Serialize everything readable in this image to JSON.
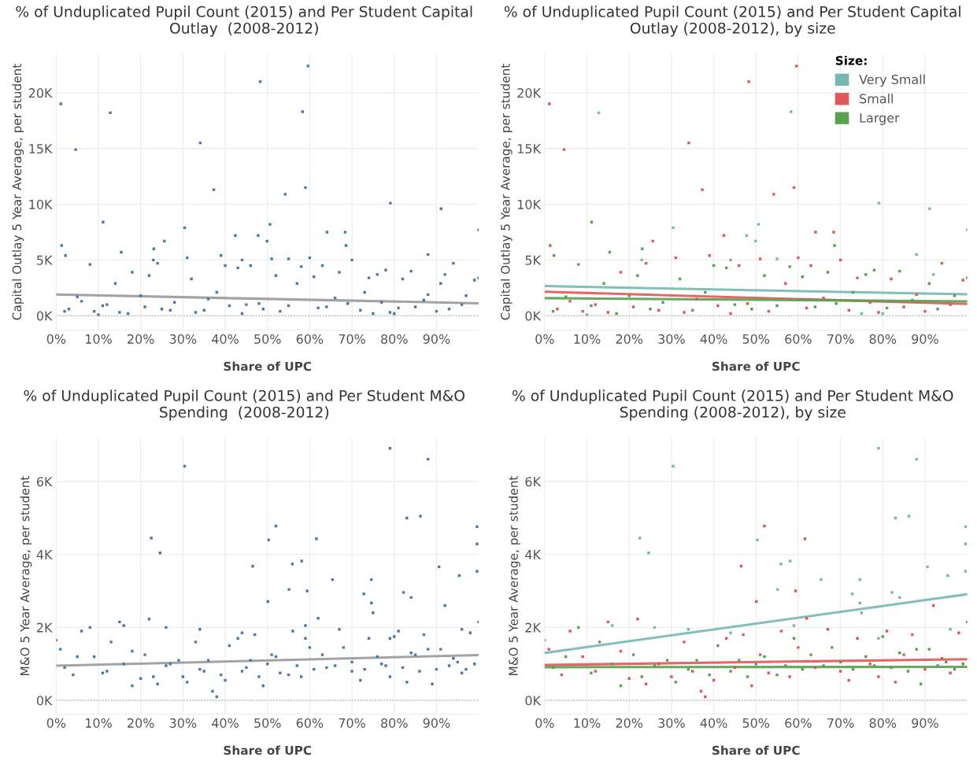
{
  "chart_data": [
    {
      "type": "scatter",
      "title": "% of Unduplicated Pupil Count (2015) and Per Student Capital Outlay  (2008-2012)",
      "xlabel": "Share of UPC",
      "ylabel": "Capital Outlay 5 Year Average, per student",
      "xlim": [
        0,
        100
      ],
      "ylim": [
        -1300,
        23500
      ],
      "xticks": [
        {
          "value": 0,
          "label": "0%"
        },
        {
          "value": 10,
          "label": "10%"
        },
        {
          "value": 20,
          "label": "20%"
        },
        {
          "value": 30,
          "label": "30%"
        },
        {
          "value": 40,
          "label": "40%"
        },
        {
          "value": 50,
          "label": "50%"
        },
        {
          "value": 60,
          "label": "60%"
        },
        {
          "value": 70,
          "label": "70%"
        },
        {
          "value": 80,
          "label": "80%"
        },
        {
          "value": 90,
          "label": "90%"
        }
      ],
      "yticks": [
        {
          "value": 0,
          "label": "0K"
        },
        {
          "value": 5000,
          "label": "5K"
        },
        {
          "value": 10000,
          "label": "10K"
        },
        {
          "value": 15000,
          "label": "15K"
        },
        {
          "value": 20000,
          "label": "20K"
        }
      ],
      "grid": true,
      "marker": "square",
      "ref_lines": [
        {
          "axis": "y",
          "value": 0,
          "line_style": "dotted",
          "color": "#bbbbbb"
        }
      ],
      "series": [
        {
          "color": "#4e79a7",
          "x": [
            12.8,
            58.3,
            79.1,
            91.1,
            30.4,
            50.6,
            47.8,
            100,
            49.9,
            10,
            23,
            44,
            55,
            75,
            88,
            92,
            80,
            1.1,
            4.6,
            34.1,
            48.3,
            59.6,
            59.0,
            54.2,
            37.3,
            1.3,
            25.6,
            42.4,
            64.1,
            68.4,
            3,
            6,
            9,
            12,
            15,
            18,
            21,
            24,
            27,
            31,
            33,
            36,
            39,
            41,
            44,
            46,
            48,
            51,
            53,
            57,
            60,
            62,
            63,
            66,
            70,
            72,
            74,
            77,
            79,
            82,
            85,
            88,
            90,
            94,
            96,
            99,
            11.1,
            2.2,
            68.6,
            23.1,
            15.4,
            2,
            5,
            8,
            11,
            14,
            17,
            20,
            22,
            25,
            28,
            32,
            35,
            38,
            40,
            43,
            45,
            49,
            52,
            55,
            58,
            61,
            64,
            67,
            69,
            73,
            76,
            78,
            81,
            84,
            87,
            91,
            93,
            97,
            100
          ],
          "values": [
            18200,
            18300,
            10100,
            9600,
            7900,
            8200,
            7200,
            7700,
            6700,
            100,
            5000,
            5000,
            5100,
            200,
            5500,
            3700,
            200,
            19000,
            14900,
            15500,
            21000,
            22400,
            11500,
            10900,
            11300,
            6300,
            6700,
            7200,
            7500,
            7500,
            600,
            1300,
            400,
            1000,
            300,
            3900,
            800,
            4700,
            500,
            5200,
            300,
            1500,
            5400,
            900,
            200,
            4500,
            1100,
            5100,
            400,
            2900,
            5200,
            700,
            4500,
            1600,
            5000,
            500,
            3400,
            1200,
            300,
            3300,
            800,
            1900,
            400,
            4700,
            1000,
            3200,
            8400,
            5400,
            6300,
            6000,
            5700,
            400,
            1700,
            4600,
            900,
            2900,
            200,
            1800,
            3600,
            600,
            1200,
            3300,
            500,
            2100,
            4500,
            4300,
            1000,
            600,
            3600,
            900,
            4400,
            3500,
            800,
            3900,
            1100,
            2100,
            3700,
            4100,
            700,
            4000,
            1400,
            2900,
            600,
            1800,
            3400
          ]
        },
        {
          "type": "line",
          "color": "#999999",
          "marker": "none",
          "x": [
            0,
            100
          ],
          "values": [
            1900,
            1120
          ]
        }
      ]
    },
    {
      "type": "scatter",
      "title": "% of Unduplicated Pupil Count (2015) and Per Student Capital Outlay (2008-2012), by size",
      "xlabel": "Share of UPC",
      "ylabel": "Capital Outlay 5 Year Average, per student",
      "xlim": [
        0,
        100
      ],
      "ylim": [
        -1300,
        23500
      ],
      "xticks": [
        {
          "value": 0,
          "label": "0%"
        },
        {
          "value": 10,
          "label": "10%"
        },
        {
          "value": 20,
          "label": "20%"
        },
        {
          "value": 30,
          "label": "30%"
        },
        {
          "value": 40,
          "label": "40%"
        },
        {
          "value": 50,
          "label": "50%"
        },
        {
          "value": 60,
          "label": "60%"
        },
        {
          "value": 70,
          "label": "70%"
        },
        {
          "value": 80,
          "label": "80%"
        },
        {
          "value": 90,
          "label": "90%"
        }
      ],
      "yticks": [
        {
          "value": 0,
          "label": "0K"
        },
        {
          "value": 5000,
          "label": "5K"
        },
        {
          "value": 10000,
          "label": "10K"
        },
        {
          "value": 15000,
          "label": "15K"
        },
        {
          "value": 20000,
          "label": "20K"
        }
      ],
      "grid": true,
      "marker": "square",
      "legend": "top right",
      "legend_title": "Size:",
      "ref_lines": [
        {
          "axis": "y",
          "value": 0,
          "line_style": "dotted",
          "color": "#bbbbbb"
        }
      ],
      "series": [
        {
          "name": "Very Small",
          "color": "#76b7b2",
          "x": [
            12.8,
            58.3,
            79.1,
            91.1,
            30.4,
            50.6,
            47.8,
            100,
            49.9,
            10,
            23,
            44,
            55,
            75,
            88,
            92,
            80
          ],
          "values": [
            18200,
            18300,
            10100,
            9600,
            7900,
            8200,
            7200,
            7700,
            6700,
            100,
            5000,
            5000,
            5100,
            200,
            5500,
            3700,
            200
          ]
        },
        {
          "name": "Small",
          "color": "#e15759",
          "x": [
            1.1,
            4.6,
            34.1,
            48.3,
            59.6,
            59.0,
            54.2,
            37.3,
            1.3,
            25.6,
            42.4,
            64.1,
            68.4,
            3,
            6,
            9,
            12,
            15,
            18,
            21,
            24,
            27,
            31,
            33,
            36,
            39,
            41,
            44,
            46,
            48,
            51,
            53,
            57,
            60,
            62,
            63,
            66,
            70,
            72,
            74,
            77,
            79,
            82,
            85,
            88,
            90,
            94,
            96,
            99
          ],
          "values": [
            19000,
            14900,
            15500,
            21000,
            22400,
            11500,
            10900,
            11300,
            6300,
            6700,
            7200,
            7500,
            7500,
            600,
            1300,
            400,
            1000,
            300,
            3900,
            800,
            4700,
            500,
            5200,
            300,
            1500,
            5400,
            900,
            200,
            4500,
            1100,
            5100,
            400,
            2900,
            5200,
            700,
            4500,
            1600,
            5000,
            500,
            3400,
            1200,
            300,
            3300,
            800,
            1900,
            400,
            4700,
            1000,
            3200
          ]
        },
        {
          "name": "Larger",
          "color": "#59a14f",
          "x": [
            11.1,
            2.2,
            68.6,
            23.1,
            15.4,
            2,
            5,
            8,
            11,
            14,
            17,
            20,
            22,
            25,
            28,
            32,
            35,
            38,
            40,
            43,
            45,
            49,
            52,
            55,
            58,
            61,
            64,
            67,
            69,
            73,
            76,
            78,
            81,
            84,
            87,
            91,
            93,
            97,
            100
          ],
          "values": [
            8400,
            5400,
            6300,
            6000,
            5700,
            400,
            1700,
            4600,
            900,
            2900,
            200,
            1800,
            3600,
            600,
            1200,
            3300,
            500,
            2100,
            4500,
            4300,
            1000,
            600,
            3600,
            900,
            4400,
            3500,
            800,
            3900,
            1100,
            2100,
            3700,
            4100,
            700,
            4000,
            1400,
            2900,
            600,
            1800,
            3400
          ]
        },
        {
          "type": "line",
          "color": "#76b7b2",
          "marker": "none",
          "x": [
            0,
            100
          ],
          "values": [
            2660,
            1920
          ]
        },
        {
          "type": "line",
          "color": "#e15759",
          "marker": "none",
          "x": [
            0,
            100
          ],
          "values": [
            2150,
            1060
          ]
        },
        {
          "type": "line",
          "color": "#59a14f",
          "marker": "none",
          "x": [
            0,
            100
          ],
          "values": [
            1580,
            1290
          ]
        }
      ]
    },
    {
      "type": "scatter",
      "title": "% of Unduplicated Pupil Count (2015) and Per Student M&O Spending  (2008-2012)",
      "xlabel": "Share of UPC",
      "ylabel": "M&O 5 Year Average, per student",
      "xlim": [
        0,
        100
      ],
      "ylim": [
        -380,
        7200
      ],
      "xticks": [
        {
          "value": 0,
          "label": "0%"
        },
        {
          "value": 10,
          "label": "10%"
        },
        {
          "value": 20,
          "label": "20%"
        },
        {
          "value": 30,
          "label": "30%"
        },
        {
          "value": 40,
          "label": "40%"
        },
        {
          "value": 50,
          "label": "50%"
        },
        {
          "value": 60,
          "label": "60%"
        },
        {
          "value": 70,
          "label": "70%"
        },
        {
          "value": 80,
          "label": "80%"
        },
        {
          "value": 90,
          "label": "90%"
        }
      ],
      "yticks": [
        {
          "value": 0,
          "label": "0K"
        },
        {
          "value": 2000,
          "label": "2K"
        },
        {
          "value": 4000,
          "label": "4K"
        },
        {
          "value": 6000,
          "label": "6K"
        }
      ],
      "grid": true,
      "marker": "square",
      "ref_lines": [
        {
          "axis": "y",
          "value": 0,
          "line_style": "dotted",
          "color": "#bbbbbb"
        }
      ],
      "series": [
        {
          "color": "#4e79a7",
          "x": [
            30.4,
            79.0,
            88.0,
            83.0,
            86.2,
            50.3,
            22.5,
            24.6,
            99.6,
            99.6,
            55.9,
            58.1,
            90.6,
            99.6,
            95.4,
            65.4,
            74.6,
            55.1,
            72.8,
            82.2,
            74.6,
            0,
            16,
            26,
            34,
            44,
            59,
            75,
            79,
            84,
            96,
            52.0,
            61.6,
            46.5,
            59.4,
            50.1,
            1,
            4,
            6,
            9,
            12,
            15,
            18,
            20,
            22,
            24,
            27,
            30,
            33,
            35,
            37,
            38,
            40,
            43,
            45,
            47,
            49,
            51,
            53,
            56,
            58,
            60,
            62,
            64,
            67,
            70,
            72,
            74,
            77,
            79,
            81,
            83,
            85,
            87,
            90,
            92,
            94,
            96,
            98,
            100,
            2,
            5,
            8,
            11,
            13,
            16,
            18,
            21,
            23,
            26,
            29,
            31,
            34,
            36,
            39,
            41,
            44,
            46,
            48,
            50,
            52,
            55,
            57,
            59,
            61,
            63,
            66,
            68,
            70,
            73,
            76,
            78,
            80,
            82,
            84,
            86,
            88,
            89,
            91,
            93,
            95,
            97,
            99
          ],
          "values": [
            6420,
            6910,
            6610,
            5000,
            5050,
            4400,
            4450,
            4040,
            4760,
            4290,
            3740,
            3820,
            3660,
            3540,
            3420,
            3310,
            3310,
            3040,
            2920,
            2960,
            2670,
            1650,
            2050,
            2000,
            1950,
            1850,
            2050,
            2400,
            1700,
            2820,
            1950,
            4780,
            4430,
            3680,
            3000,
            2710,
            1400,
            700,
            1900,
            1200,
            800,
            2150,
            1350,
            600,
            2230,
            450,
            1000,
            650,
            1600,
            800,
            250,
            100,
            550,
            1700,
            900,
            1800,
            400,
            1250,
            750,
            1900,
            650,
            1450,
            2250,
            900,
            1950,
            800,
            550,
            1700,
            1000,
            650,
            1900,
            500,
            1250,
            1800,
            850,
            2600,
            1150,
            750,
            1850,
            2150,
            900,
            1200,
            2000,
            750,
            1600,
            1000,
            400,
            1250,
            650,
            950,
            1100,
            500,
            850,
            1100,
            700,
            1500,
            800,
            1100,
            650,
            1000,
            1200,
            700,
            950,
            1700,
            850,
            1250,
            950,
            1450,
            1050,
            850,
            1200,
            950,
            1750,
            900,
            1300,
            800,
            1400,
            450,
            1400,
            950,
            1050,
            850,
            1000
          ]
        },
        {
          "type": "line",
          "color": "#999999",
          "marker": "none",
          "x": [
            0,
            100
          ],
          "values": [
            950,
            1240
          ]
        }
      ]
    },
    {
      "type": "scatter",
      "title": "% of Unduplicated Pupil Count (2015) and Per Student M&O Spending (2008-2012), by size",
      "xlabel": "Share of UPC",
      "ylabel": "M&O 5 Year Average, per student",
      "xlim": [
        0,
        100
      ],
      "ylim": [
        -380,
        7200
      ],
      "xticks": [
        {
          "value": 0,
          "label": "0%"
        },
        {
          "value": 10,
          "label": "10%"
        },
        {
          "value": 20,
          "label": "20%"
        },
        {
          "value": 30,
          "label": "30%"
        },
        {
          "value": 40,
          "label": "40%"
        },
        {
          "value": 50,
          "label": "50%"
        },
        {
          "value": 60,
          "label": "60%"
        },
        {
          "value": 70,
          "label": "70%"
        },
        {
          "value": 80,
          "label": "80%"
        },
        {
          "value": 90,
          "label": "90%"
        }
      ],
      "yticks": [
        {
          "value": 0,
          "label": "0K"
        },
        {
          "value": 2000,
          "label": "2K"
        },
        {
          "value": 4000,
          "label": "4K"
        },
        {
          "value": 6000,
          "label": "6K"
        }
      ],
      "grid": true,
      "marker": "square",
      "ref_lines": [
        {
          "axis": "y",
          "value": 0,
          "line_style": "dotted",
          "color": "#bbbbbb"
        }
      ],
      "series": [
        {
          "color": "#76b7b2",
          "x": [
            30.4,
            79.0,
            88.0,
            83.0,
            86.2,
            50.3,
            22.5,
            24.6,
            99.6,
            99.6,
            55.9,
            58.1,
            90.6,
            99.6,
            95.4,
            65.4,
            74.6,
            55.1,
            72.8,
            82.2,
            74.6,
            0,
            16,
            26,
            34,
            44,
            59,
            75,
            79,
            84,
            96
          ],
          "values": [
            6420,
            6910,
            6610,
            5000,
            5050,
            4400,
            4450,
            4040,
            4760,
            4290,
            3740,
            3820,
            3660,
            3540,
            3420,
            3310,
            3310,
            3040,
            2920,
            2960,
            2670,
            1650,
            2050,
            2000,
            1950,
            1850,
            2050,
            2400,
            1700,
            2820,
            1950
          ]
        },
        {
          "color": "#e15759",
          "x": [
            52.0,
            61.6,
            46.5,
            59.4,
            50.1,
            1,
            4,
            6,
            9,
            12,
            15,
            18,
            20,
            22,
            24,
            27,
            30,
            33,
            35,
            37,
            38,
            40,
            43,
            45,
            47,
            49,
            51,
            53,
            56,
            58,
            60,
            62,
            64,
            67,
            70,
            72,
            74,
            77,
            79,
            81,
            83,
            85,
            87,
            90,
            92,
            94,
            96,
            98,
            100
          ],
          "values": [
            4780,
            4430,
            3680,
            3000,
            2710,
            1400,
            700,
            1900,
            1200,
            800,
            2150,
            1350,
            600,
            2230,
            450,
            1000,
            650,
            1600,
            800,
            250,
            100,
            550,
            1700,
            900,
            1800,
            400,
            1250,
            750,
            1900,
            650,
            1450,
            2250,
            900,
            1950,
            800,
            550,
            1700,
            1000,
            650,
            1900,
            500,
            1250,
            1800,
            850,
            2600,
            1150,
            750,
            1850,
            2150
          ]
        },
        {
          "color": "#59a14f",
          "x": [
            2,
            5,
            8,
            11,
            13,
            16,
            18,
            21,
            23,
            26,
            29,
            31,
            34,
            36,
            39,
            41,
            44,
            46,
            48,
            50,
            52,
            55,
            57,
            59,
            61,
            63,
            66,
            68,
            70,
            73,
            76,
            78,
            80,
            82,
            84,
            86,
            88,
            89,
            91,
            93,
            95,
            97,
            99
          ],
          "values": [
            900,
            1200,
            2000,
            750,
            1600,
            1000,
            400,
            1250,
            650,
            950,
            1100,
            500,
            850,
            1100,
            700,
            1500,
            800,
            1100,
            650,
            1000,
            1200,
            700,
            950,
            1700,
            850,
            1250,
            950,
            1450,
            1050,
            850,
            1200,
            950,
            1750,
            900,
            1300,
            800,
            1400,
            450,
            1400,
            950,
            1050,
            850,
            1000
          ]
        },
        {
          "type": "line",
          "color": "#76b7b2",
          "marker": "none",
          "x": [
            0,
            100
          ],
          "values": [
            1300,
            2910
          ]
        },
        {
          "type": "line",
          "color": "#e15759",
          "marker": "none",
          "x": [
            0,
            100
          ],
          "values": [
            970,
            1130
          ]
        },
        {
          "type": "line",
          "color": "#59a14f",
          "marker": "none",
          "x": [
            0,
            100
          ],
          "values": [
            910,
            920
          ]
        }
      ]
    }
  ]
}
